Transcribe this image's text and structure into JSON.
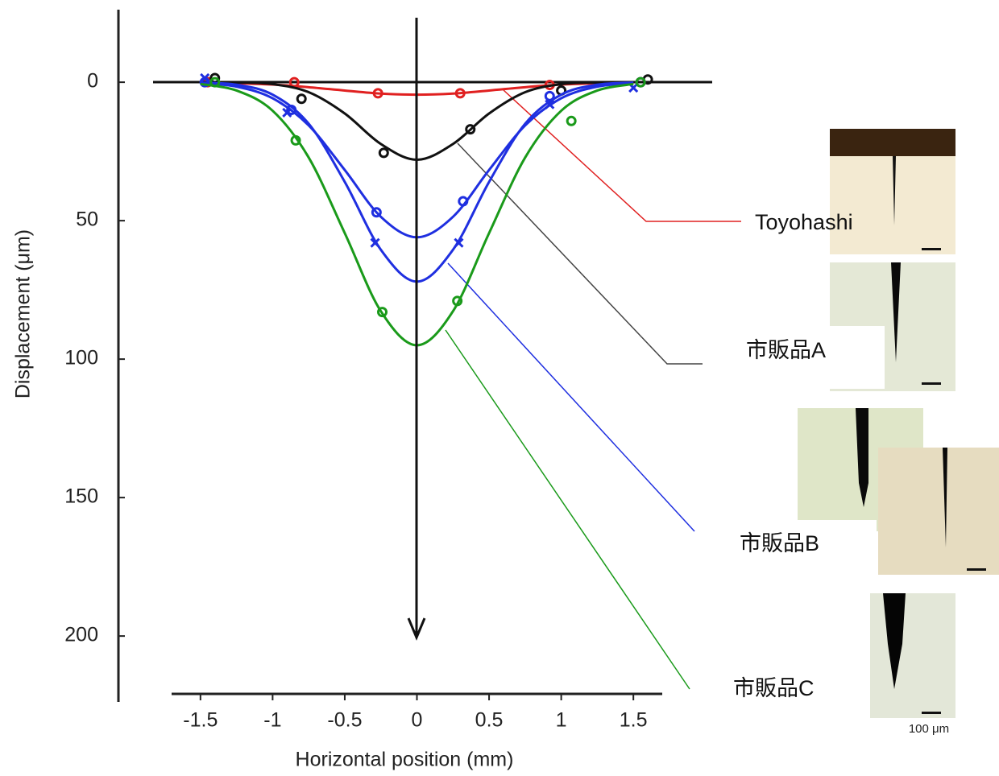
{
  "chart_data": {
    "type": "line",
    "x_label": "Horizontal position (mm)",
    "y_label": "Displacement (μm)",
    "xlim": [
      -1.7,
      1.7
    ],
    "ylim": [
      -26.2,
      223.8
    ],
    "y_inverted": true,
    "xticks": [
      -1.5,
      -1,
      -0.5,
      0,
      0.5,
      1,
      1.5
    ],
    "yticks": [
      0,
      50,
      100,
      150,
      200
    ],
    "series": [
      {
        "color": "#e02020",
        "marker": "o",
        "x": [
          -1.5,
          -1.25,
          -1,
          -0.75,
          -0.5,
          -0.25,
          0,
          0.25,
          0.5,
          0.75,
          1,
          1.25,
          1.5
        ],
        "values": [
          0.1,
          0.4,
          0.85,
          1.8,
          3.0,
          4.1,
          4.5,
          4.1,
          3.0,
          1.8,
          0.85,
          0.4,
          0.1
        ],
        "marker_x": [
          -1.45,
          -0.85,
          -0.27,
          0.3,
          0.92,
          1.55
        ],
        "marker_values": [
          0,
          0,
          4,
          4,
          1,
          0
        ]
      },
      {
        "color": "#111111",
        "marker": "o",
        "x": [
          -1.5,
          -1.25,
          -1,
          -0.75,
          -0.5,
          -0.25,
          0,
          0.25,
          0.5,
          0.75,
          1,
          1.25,
          1.5
        ],
        "values": [
          0,
          0.1,
          0.7,
          3.6,
          11.3,
          22.3,
          28,
          22.3,
          11.3,
          3.6,
          0.7,
          0.1,
          0
        ],
        "marker_x": [
          -1.4,
          -0.8,
          -0.23,
          0.37,
          1.0,
          1.6
        ],
        "marker_values": [
          -1.5,
          6,
          25.5,
          17,
          3,
          -1
        ]
      },
      {
        "color": "#1f2fe0",
        "marker": "o",
        "x": [
          -1.5,
          -1.25,
          -1,
          -0.75,
          -0.5,
          -0.25,
          0,
          0.25,
          0.5,
          0.75,
          1,
          1.25,
          1.5
        ],
        "values": [
          0.34,
          1.6,
          5.8,
          15.6,
          31.7,
          48.6,
          56,
          48.6,
          31.7,
          15.6,
          5.8,
          1.6,
          0.34
        ],
        "marker_x": [
          -1.47,
          -0.87,
          -0.28,
          0.32,
          0.92,
          1.55
        ],
        "marker_values": [
          0,
          10,
          47,
          43,
          5,
          0
        ]
      },
      {
        "color": "#1f2fe0",
        "marker": "x",
        "x": [
          -1.5,
          -1.25,
          -1,
          -0.75,
          -0.5,
          -0.25,
          0,
          0.25,
          0.5,
          0.75,
          1,
          1.25,
          1.5
        ],
        "values": [
          0.14,
          0.9,
          4.5,
          15,
          36,
          60.5,
          72,
          60.5,
          36,
          15,
          4.5,
          0.9,
          0.14
        ],
        "marker_x": [
          -1.47,
          -0.9,
          -0.29,
          0.29,
          0.92,
          1.5
        ],
        "marker_values": [
          -1.5,
          11,
          58,
          58,
          8,
          2
        ]
      },
      {
        "color": "#1a9a1a",
        "marker": "o",
        "x": [
          -1.5,
          -1.25,
          -1,
          -0.75,
          -0.5,
          -0.25,
          0,
          0.25,
          0.5,
          0.75,
          1,
          1.25,
          1.5
        ],
        "values": [
          0.64,
          3.0,
          10.3,
          27.2,
          54.5,
          82.7,
          95,
          82.7,
          54.5,
          27.2,
          10.3,
          3.0,
          0.64
        ],
        "marker_x": [
          -1.4,
          -0.84,
          -0.24,
          0.28,
          1.07,
          1.55
        ],
        "marker_values": [
          0,
          21,
          83,
          79,
          14,
          0
        ]
      }
    ],
    "annotations": [
      "Toyohashi",
      "市販品A",
      "市販品B",
      "市販品C"
    ],
    "scale_bar_label": "100 μm"
  }
}
